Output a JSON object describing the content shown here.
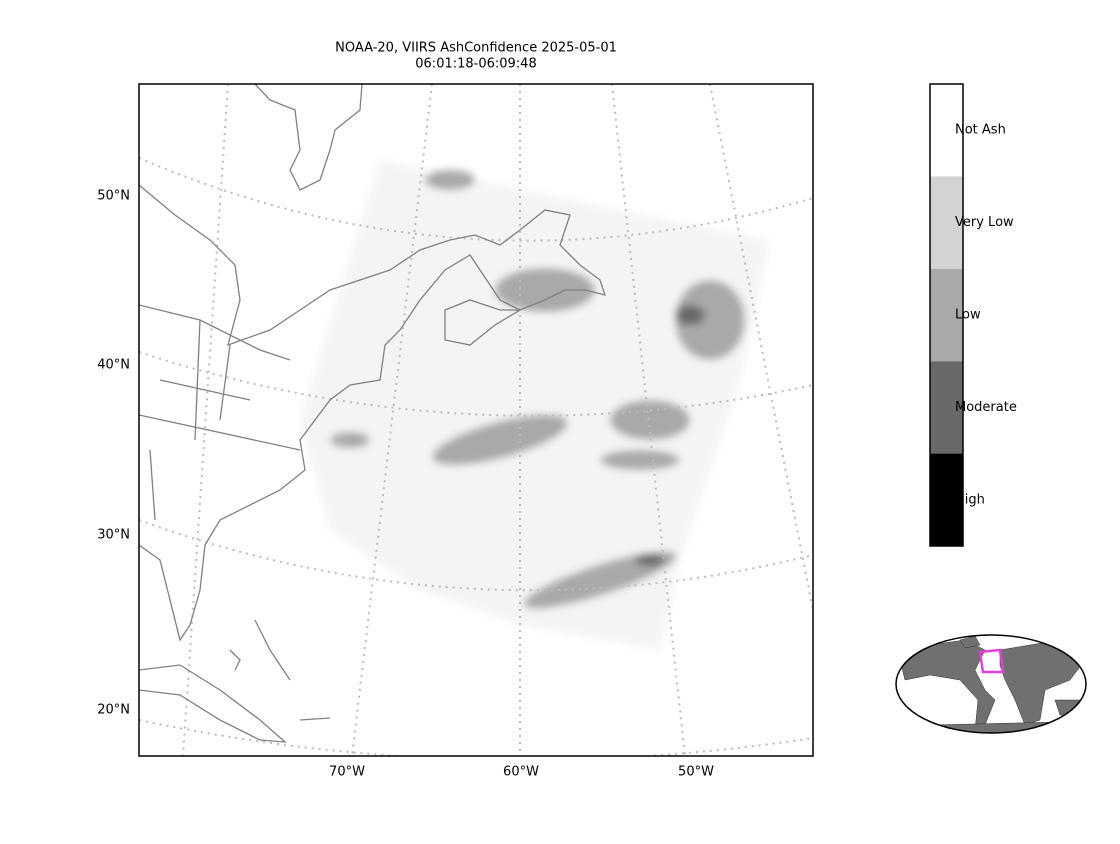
{
  "title": [
    "NOAA-20, VIIRS AshConfidence 2025-05-01",
    "06:01:18-06:09:48"
  ],
  "lat_labels": [
    "50°N",
    "40°N",
    "30°N",
    "20°N"
  ],
  "lon_labels": [
    "70°W",
    "60°W",
    "50°W"
  ],
  "colorbar": {
    "labels": [
      "Not Ash",
      "Very Low",
      "Low",
      "Moderate",
      "High"
    ],
    "colors": [
      "#ffffff",
      "#d3d3d3",
      "#a9a9a9",
      "#696969",
      "#000000"
    ]
  }
}
